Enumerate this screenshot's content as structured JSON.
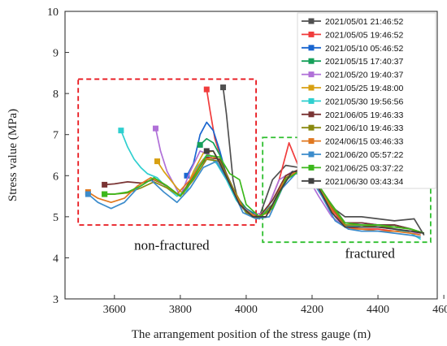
{
  "chart_data": {
    "type": "line",
    "xlabel": "The arrangement position of the stress gauge (m)",
    "ylabel": "Stress value (MPa)",
    "xlim": [
      3450,
      4580
    ],
    "ylim": [
      3,
      10
    ],
    "xticks": [
      3600,
      3800,
      4000,
      4200,
      4400,
      4600
    ],
    "yticks": [
      3,
      4,
      5,
      6,
      7,
      8,
      9,
      10
    ],
    "grid": false,
    "legend_position": "top-right",
    "annotations": [
      {
        "text": "non-fractured",
        "x": 3660,
        "y": 4.2,
        "box": {
          "x": [
            3490,
            4030
          ],
          "y": [
            4.8,
            8.35
          ]
        },
        "box_color": "#e8161c"
      },
      {
        "text": "fractured",
        "x": 4300,
        "y": 4.0,
        "box": {
          "x": [
            4050,
            4560
          ],
          "y": [
            4.38,
            6.93
          ]
        },
        "box_color": "#2fbf2f"
      }
    ],
    "series": [
      {
        "name": "2021/05/01 21:46:52",
        "color": "#505050",
        "x": [
          3930,
          3940,
          3950,
          3960,
          3975,
          4000,
          4040,
          4080,
          4120,
          4160,
          4200,
          4250,
          4300,
          4350,
          4400,
          4450,
          4510,
          4540
        ],
        "y": [
          8.15,
          7.5,
          6.7,
          5.9,
          5.4,
          5.1,
          5.0,
          5.9,
          6.25,
          6.2,
          5.9,
          5.3,
          5.0,
          5.0,
          4.95,
          4.9,
          4.95,
          4.55
        ]
      },
      {
        "name": "2021/05/05 19:46:52",
        "color": "#f03c3c",
        "x": [
          3880,
          3890,
          3905,
          3925,
          3950,
          3980,
          4020,
          4060,
          4100,
          4130,
          4160,
          4200,
          4250,
          4300,
          4350,
          4400,
          4450,
          4500,
          4530
        ],
        "y": [
          8.1,
          7.6,
          6.9,
          6.4,
          5.8,
          5.3,
          5.05,
          5.1,
          5.9,
          6.8,
          6.2,
          5.9,
          5.3,
          4.75,
          4.7,
          4.7,
          4.65,
          4.65,
          4.6
        ]
      },
      {
        "name": "2021/05/10 05:46:52",
        "color": "#1a66d0",
        "x": [
          3820,
          3840,
          3860,
          3880,
          3900,
          3920,
          3940,
          3970,
          4000,
          4040,
          4080,
          4120,
          4160,
          4200,
          4250,
          4300,
          4350,
          4400,
          4450,
          4500,
          4530
        ],
        "y": [
          6.0,
          6.3,
          7.0,
          7.3,
          7.1,
          6.6,
          6.0,
          5.5,
          5.2,
          5.0,
          5.3,
          5.9,
          6.15,
          6.0,
          5.4,
          4.85,
          4.85,
          4.8,
          4.8,
          4.7,
          4.6
        ]
      },
      {
        "name": "2021/05/15 17:40:37",
        "color": "#16a05a",
        "x": [
          3860,
          3880,
          3900,
          3920,
          3940,
          3970,
          4000,
          4040,
          4080,
          4120,
          4160,
          4200,
          4250,
          4300,
          4350,
          4400,
          4450,
          4500,
          4540
        ],
        "y": [
          6.75,
          6.9,
          6.8,
          6.5,
          6.0,
          5.5,
          5.2,
          4.95,
          5.3,
          5.9,
          6.1,
          6.0,
          5.4,
          4.8,
          4.75,
          4.8,
          4.8,
          4.7,
          4.6
        ]
      },
      {
        "name": "2021/05/20 19:40:37",
        "color": "#b070d8",
        "x": [
          3725,
          3740,
          3760,
          3780,
          3800,
          3830,
          3860,
          3890,
          3920,
          3950,
          3980,
          4020,
          4060,
          4100,
          4140,
          4180,
          4220,
          4260,
          4300,
          4350,
          4400,
          4450,
          4500,
          4530
        ],
        "y": [
          7.15,
          6.6,
          6.1,
          5.8,
          5.5,
          6.1,
          6.6,
          6.5,
          6.2,
          5.8,
          5.3,
          5.05,
          5.1,
          5.9,
          6.1,
          6.05,
          5.5,
          5.0,
          4.75,
          4.8,
          4.75,
          4.7,
          4.65,
          4.55
        ]
      },
      {
        "name": "2021/05/25 19:48:00",
        "color": "#d8a012",
        "x": [
          3730,
          3750,
          3770,
          3790,
          3810,
          3840,
          3870,
          3900,
          3930,
          3960,
          4000,
          4040,
          4080,
          4120,
          4160,
          4200,
          4250,
          4300,
          4350,
          4400,
          4450,
          4500,
          4540
        ],
        "y": [
          6.35,
          6.1,
          5.9,
          5.7,
          5.55,
          6.1,
          6.55,
          6.6,
          6.2,
          5.6,
          5.1,
          5.0,
          5.4,
          6.0,
          6.15,
          6.0,
          5.4,
          4.8,
          4.75,
          4.75,
          4.75,
          4.7,
          4.6
        ]
      },
      {
        "name": "2021/05/30 19:56:56",
        "color": "#2fcfcf",
        "x": [
          3620,
          3640,
          3660,
          3680,
          3700,
          3730,
          3760,
          3790,
          3820,
          3850,
          3880,
          3910,
          3940,
          3970,
          4000,
          4040,
          4080,
          4120,
          4160,
          4200,
          4250,
          4300,
          4350,
          4400,
          4450,
          4500,
          4530
        ],
        "y": [
          7.1,
          6.7,
          6.4,
          6.2,
          6.05,
          5.95,
          5.7,
          5.5,
          5.65,
          6.2,
          6.5,
          6.3,
          5.9,
          5.4,
          5.1,
          4.95,
          5.4,
          5.9,
          6.1,
          5.95,
          5.4,
          4.8,
          4.75,
          4.75,
          4.7,
          4.6,
          4.45
        ]
      },
      {
        "name": "2021/06/05 19:46:33",
        "color": "#7a3434",
        "x": [
          3570,
          3600,
          3640,
          3680,
          3720,
          3760,
          3800,
          3840,
          3880,
          3920,
          3960,
          4000,
          4040,
          4080,
          4120,
          4160,
          4200,
          4250,
          4300,
          4350,
          4400,
          4450,
          4500,
          4530
        ],
        "y": [
          5.78,
          5.8,
          5.85,
          5.82,
          5.9,
          5.75,
          5.5,
          6.0,
          6.45,
          6.4,
          5.7,
          5.1,
          5.0,
          5.4,
          6.0,
          6.15,
          6.0,
          5.4,
          4.85,
          4.85,
          4.8,
          4.8,
          4.7,
          4.6
        ]
      },
      {
        "name": "2021/06/10 19:46:33",
        "color": "#8a8a10",
        "x": [
          3570,
          3600,
          3640,
          3680,
          3720,
          3760,
          3800,
          3840,
          3880,
          3920,
          3960,
          4000,
          4040,
          4080,
          4120,
          4160,
          4200,
          4250,
          4300,
          4350,
          4400,
          4450,
          4500,
          4530
        ],
        "y": [
          5.55,
          5.55,
          5.58,
          5.7,
          5.85,
          5.7,
          5.5,
          5.9,
          6.4,
          6.35,
          5.7,
          5.1,
          4.95,
          5.3,
          5.95,
          6.1,
          5.95,
          5.35,
          4.8,
          4.8,
          4.75,
          4.75,
          4.7,
          4.6
        ]
      },
      {
        "name": "2024/06/15 03:46:33",
        "color": "#e07820",
        "x": [
          3520,
          3550,
          3590,
          3630,
          3670,
          3710,
          3750,
          3790,
          3830,
          3870,
          3910,
          3950,
          3990,
          4030,
          4070,
          4110,
          4150,
          4190,
          4230,
          4270,
          4310,
          4350,
          4400,
          4450,
          4500,
          4530
        ],
        "y": [
          5.6,
          5.45,
          5.35,
          5.45,
          5.75,
          5.95,
          5.8,
          5.55,
          5.9,
          6.4,
          6.45,
          5.8,
          5.2,
          5.0,
          5.1,
          5.8,
          6.1,
          6.0,
          5.6,
          5.0,
          4.7,
          4.7,
          4.65,
          4.65,
          4.6,
          4.55
        ]
      },
      {
        "name": "2021/06/20 05:57:22",
        "color": "#3c8ccc",
        "x": [
          3520,
          3550,
          3590,
          3630,
          3670,
          3710,
          3750,
          3790,
          3830,
          3870,
          3910,
          3950,
          3990,
          4030,
          4070,
          4110,
          4150,
          4190,
          4230,
          4270,
          4310,
          4350,
          4400,
          4450,
          4500,
          4530
        ],
        "y": [
          5.55,
          5.35,
          5.2,
          5.35,
          5.7,
          5.9,
          5.6,
          5.35,
          5.7,
          6.2,
          6.35,
          5.8,
          5.1,
          4.95,
          5.0,
          5.7,
          6.05,
          6.0,
          5.5,
          4.9,
          4.7,
          4.65,
          4.65,
          4.6,
          4.55,
          4.5
        ]
      },
      {
        "name": "2021/06/25 03:37:22",
        "color": "#3cb81c",
        "x": [
          3570,
          3600,
          3640,
          3680,
          3720,
          3760,
          3800,
          3840,
          3880,
          3920,
          3950,
          3980,
          4000,
          4040,
          4080,
          4120,
          4160,
          4200,
          4250,
          4300,
          4350,
          4400,
          4450,
          4500,
          4540
        ],
        "y": [
          5.55,
          5.55,
          5.6,
          5.75,
          5.95,
          5.75,
          5.5,
          5.95,
          6.5,
          6.45,
          6.05,
          5.9,
          5.3,
          5.0,
          5.2,
          5.9,
          6.1,
          6.0,
          5.4,
          4.85,
          4.8,
          4.8,
          4.75,
          4.7,
          4.6
        ]
      },
      {
        "name": "2021/06/30 03:43:34",
        "color": "#404040",
        "x": [
          3880,
          3900,
          3920,
          3950,
          3980,
          4020,
          4060,
          4100,
          4140,
          4180,
          4220,
          4260,
          4300,
          4350,
          4400,
          4450,
          4500,
          4540
        ],
        "y": [
          6.6,
          6.6,
          6.3,
          5.8,
          5.3,
          5.0,
          5.0,
          5.6,
          6.1,
          6.1,
          5.7,
          5.1,
          4.75,
          4.75,
          4.75,
          4.7,
          4.65,
          4.6
        ]
      }
    ]
  }
}
